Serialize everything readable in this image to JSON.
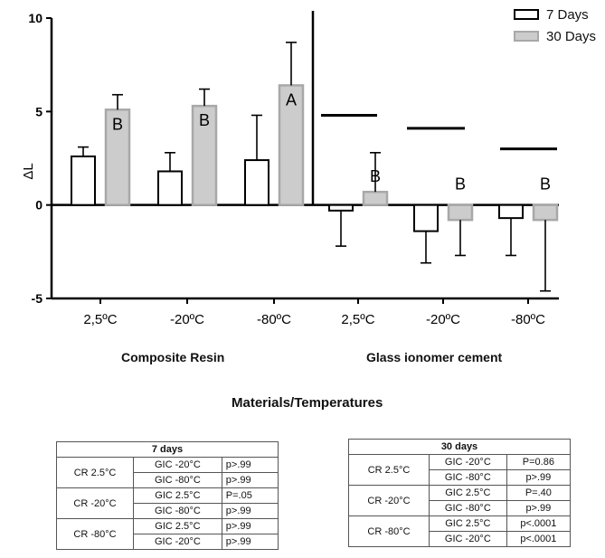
{
  "chart_data": {
    "type": "bar",
    "ylabel": "ΔL",
    "xlabel": "Materials/Temperatures",
    "ylim": [
      -5,
      10
    ],
    "yticks": [
      -5,
      0,
      5,
      10
    ],
    "group_labels": [
      "Composite Resin",
      "Glass ionomer cement"
    ],
    "categories": [
      "2,5ºC",
      "-20ºC",
      "-80ºC",
      "2,5ºC",
      "-20ºC",
      "-80ºC"
    ],
    "series": [
      {
        "name": "7 Days",
        "color": "#ffffff",
        "edge": "#000000",
        "values": [
          2.6,
          1.8,
          2.4,
          -0.3,
          -1.4,
          -0.7
        ],
        "errors": [
          0.5,
          1.0,
          2.4,
          1.9,
          1.7,
          2.0
        ]
      },
      {
        "name": "30 Days",
        "color": "#cccccc",
        "edge": "#a8a8a8",
        "values": [
          5.1,
          5.3,
          6.4,
          0.7,
          -0.8,
          -0.8
        ],
        "errors": [
          0.8,
          0.9,
          2.3,
          2.1,
          1.9,
          3.8
        ]
      }
    ],
    "annotations": [
      {
        "category_index": 0,
        "series": 1,
        "text": "B"
      },
      {
        "category_index": 1,
        "series": 1,
        "text": "B"
      },
      {
        "category_index": 2,
        "series": 1,
        "text": "A"
      },
      {
        "category_index": 3,
        "series": 1,
        "text": "B"
      },
      {
        "category_index": 4,
        "series": 1,
        "text": "B"
      },
      {
        "category_index": 5,
        "series": 1,
        "text": "B"
      }
    ],
    "reference_lines": [
      {
        "category_index": 3,
        "value": 4.8
      },
      {
        "category_index": 4,
        "value": 4.1
      },
      {
        "category_index": 5,
        "value": 3.0
      }
    ]
  },
  "tables": [
    {
      "title": "7 days",
      "groups": [
        {
          "label": "CR 2.5°C",
          "rows": [
            [
              "GIC -20°C",
              "p>.99"
            ],
            [
              "GIC -80°C",
              "p>.99"
            ]
          ]
        },
        {
          "label": "CR -20°C",
          "rows": [
            [
              "GIC 2.5°C",
              "P=.05"
            ],
            [
              "GIC -80°C",
              "p>.99"
            ]
          ]
        },
        {
          "label": "CR -80°C",
          "rows": [
            [
              "GIC 2.5°C",
              "p>.99"
            ],
            [
              "GIC -20°C",
              "p>.99"
            ]
          ]
        }
      ]
    },
    {
      "title": "30 days",
      "groups": [
        {
          "label": "CR 2.5°C",
          "rows": [
            [
              "GIC -20°C",
              "P=0.86"
            ],
            [
              "GIC -80°C",
              "p>.99"
            ]
          ]
        },
        {
          "label": "CR -20°C",
          "rows": [
            [
              "GIC 2.5°C",
              "P=.40"
            ],
            [
              "GIC -80°C",
              "p>.99"
            ]
          ]
        },
        {
          "label": "CR -80°C",
          "rows": [
            [
              "GIC 2.5°C",
              "p<.0001"
            ],
            [
              "GIC -20°C",
              "p<.0001"
            ]
          ]
        }
      ]
    }
  ]
}
